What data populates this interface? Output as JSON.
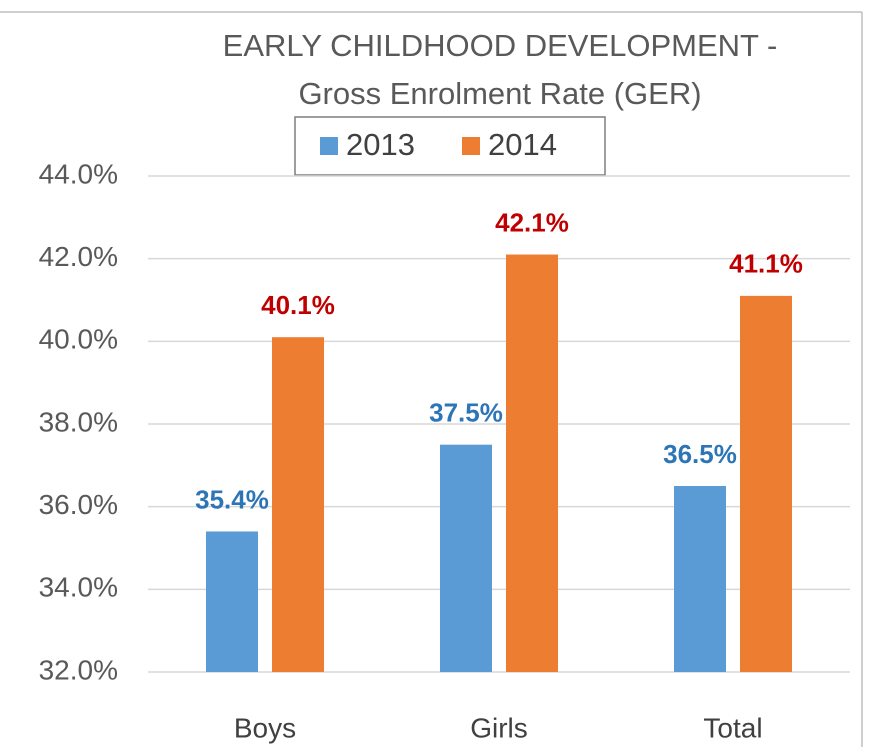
{
  "chart_data": {
    "type": "bar",
    "title": [
      "EARLY CHILDHOOD DEVELOPMENT -",
      "Gross Enrolment Rate (GER)"
    ],
    "categories": [
      "Boys",
      "Girls",
      "Total"
    ],
    "series": [
      {
        "name": "2013",
        "color": "#5b9bd5",
        "label_color": "#2e75b6",
        "values": [
          35.4,
          37.5,
          36.5
        ],
        "value_labels": [
          "35.4%",
          "37.5%",
          "36.5%"
        ]
      },
      {
        "name": "2014",
        "color": "#ed7d31",
        "label_color": "#c00000",
        "values": [
          40.1,
          42.1,
          41.1
        ],
        "value_labels": [
          "40.1%",
          "42.1%",
          "41.1%"
        ]
      }
    ],
    "ylim": [
      32,
      44
    ],
    "yticks": [
      {
        "value": 32,
        "label": "32.0%"
      },
      {
        "value": 34,
        "label": "34.0%"
      },
      {
        "value": 36,
        "label": "36.0%"
      },
      {
        "value": 38,
        "label": "38.0%"
      },
      {
        "value": 40,
        "label": "40.0%"
      },
      {
        "value": 42,
        "label": "42.0%"
      },
      {
        "value": 44,
        "label": "44.0%"
      }
    ],
    "grid": true,
    "legend": "top"
  }
}
